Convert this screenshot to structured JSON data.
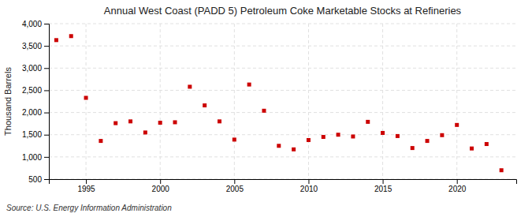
{
  "chart_data": {
    "type": "scatter",
    "title": "Annual West Coast (PADD 5) Petroleum Coke Marketable Stocks at Refineries",
    "ylabel": "Thousand Barrels",
    "annotations": [
      "Source: U.S. Energy Information Administration"
    ],
    "x": [
      1993,
      1994,
      1995,
      1996,
      1997,
      1998,
      1999,
      2000,
      2001,
      2002,
      2003,
      2004,
      2005,
      2006,
      2007,
      2008,
      2009,
      2010,
      2011,
      2012,
      2013,
      2014,
      2015,
      2016,
      2017,
      2018,
      2019,
      2020,
      2021,
      2022,
      2023
    ],
    "values": [
      3630,
      3720,
      2330,
      1360,
      1760,
      1800,
      1550,
      1770,
      1780,
      2580,
      2160,
      1800,
      1390,
      2630,
      2040,
      1250,
      1170,
      1380,
      1450,
      1500,
      1460,
      1790,
      1540,
      1470,
      1200,
      1360,
      1490,
      1720,
      1190,
      1290,
      700
    ],
    "color": "#cc0000",
    "marker": "square",
    "grid": true,
    "xlim": [
      1992.5,
      2024
    ],
    "xticks": [
      1995,
      2000,
      2005,
      2010,
      2015,
      2020
    ],
    "ylim": [
      500,
      4000
    ],
    "yticks": [
      500,
      {
        "value": 1000,
        "label": "1,000"
      },
      {
        "value": 1500,
        "label": "1,500"
      },
      {
        "value": 2000,
        "label": "2,000"
      },
      {
        "value": 2500,
        "label": "2,500"
      },
      {
        "value": 3000,
        "label": "3,000"
      },
      {
        "value": 3500,
        "label": "3,500"
      },
      {
        "value": 4000,
        "label": "4,000"
      }
    ]
  }
}
